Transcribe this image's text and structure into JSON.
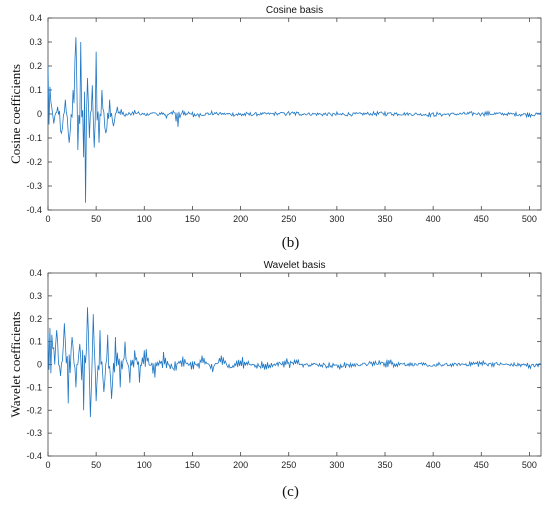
{
  "figure_labels": [
    "(b)",
    "(c)"
  ],
  "chart_data": [
    {
      "type": "line",
      "title": "Cosine basis",
      "xlabel": "",
      "ylabel": "Cosine coefficients",
      "xlim": [
        0,
        512
      ],
      "ylim": [
        -0.4,
        0.4
      ],
      "xticks": [
        0,
        50,
        100,
        150,
        200,
        250,
        300,
        350,
        400,
        450,
        500
      ],
      "yticks": [
        -0.4,
        -0.3,
        -0.2,
        -0.1,
        0,
        0.1,
        0.2,
        0.3,
        0.4
      ],
      "ytick_labels": [
        "-0.4",
        "-0.3",
        "-0.2",
        "-0.1",
        "0",
        "0.1",
        "0.2",
        "0.3",
        "0.4"
      ],
      "grid": false,
      "color": "#1f77c4",
      "x": [
        0,
        3,
        6,
        10,
        14,
        18,
        22,
        26,
        29,
        31,
        34,
        37,
        39,
        41,
        43,
        46,
        48,
        50,
        53,
        56,
        60,
        64,
        68,
        72,
        76,
        80,
        90,
        100,
        110,
        120,
        130,
        135,
        140,
        150,
        170,
        200,
        250,
        300,
        350,
        400,
        450,
        500,
        512
      ],
      "y": [
        0.2,
        0.05,
        -0.04,
        0.03,
        -0.08,
        0.06,
        -0.12,
        0.1,
        0.32,
        -0.15,
        0.3,
        -0.18,
        -0.37,
        0.15,
        -0.1,
        0.12,
        -0.14,
        0.26,
        -0.12,
        0.1,
        -0.08,
        0.06,
        -0.05,
        0.03,
        0.02,
        -0.01,
        0.01,
        -0.01,
        0.01,
        -0.015,
        0.01,
        -0.04,
        0.02,
        -0.01,
        0.005,
        -0.005,
        0.005,
        -0.005,
        0.005,
        -0.005,
        0.005,
        -0.005,
        0.0
      ]
    },
    {
      "type": "line",
      "title": "Wavelet basis",
      "xlabel": "",
      "ylabel": "Wavelet coefficients",
      "xlim": [
        0,
        512
      ],
      "ylim": [
        -0.4,
        0.4
      ],
      "xticks": [
        0,
        50,
        100,
        150,
        200,
        250,
        300,
        350,
        400,
        450,
        500
      ],
      "yticks": [
        -0.4,
        -0.3,
        -0.2,
        -0.1,
        0,
        0.1,
        0.2,
        0.3,
        0.4
      ],
      "ytick_labels": [
        "-0.4",
        "-0.3",
        "-0.2",
        "-0.1",
        "0",
        "0.1",
        "0.2",
        "0.3",
        "0.4"
      ],
      "grid": false,
      "color": "#1f77c4",
      "x": [
        0,
        2,
        5,
        9,
        13,
        17,
        21,
        25,
        29,
        33,
        37,
        41,
        44,
        47,
        50,
        54,
        58,
        62,
        66,
        70,
        75,
        80,
        85,
        90,
        95,
        100,
        110,
        120,
        130,
        140,
        150,
        160,
        170,
        180,
        190,
        200,
        220,
        250,
        300,
        350,
        400,
        450,
        500,
        512
      ],
      "y": [
        0.14,
        0.16,
        0.07,
        0.15,
        -0.05,
        0.18,
        -0.17,
        0.12,
        -0.1,
        0.09,
        -0.2,
        0.25,
        -0.23,
        0.22,
        -0.16,
        0.15,
        -0.12,
        0.13,
        -0.15,
        0.12,
        -0.1,
        0.1,
        -0.08,
        0.08,
        -0.06,
        0.07,
        -0.05,
        0.05,
        -0.04,
        0.04,
        -0.03,
        0.05,
        -0.03,
        0.03,
        -0.02,
        0.03,
        -0.02,
        0.02,
        -0.015,
        0.015,
        -0.01,
        0.01,
        -0.01,
        0.0
      ]
    }
  ]
}
